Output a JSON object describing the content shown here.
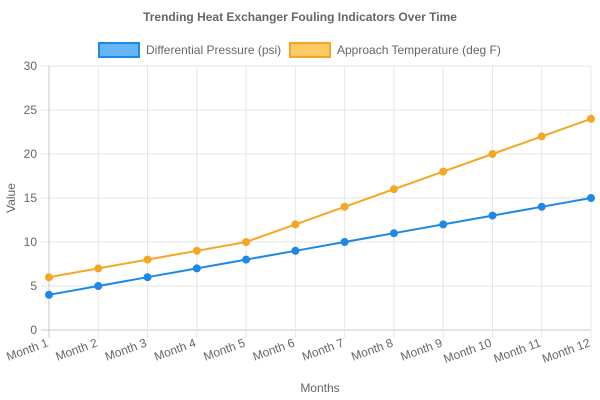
{
  "chart_data": {
    "type": "line",
    "title": "Trending Heat Exchanger Fouling Indicators Over Time",
    "xlabel": "Months",
    "ylabel": "Value",
    "categories": [
      "Month 1",
      "Month 2",
      "Month 3",
      "Month 4",
      "Month 5",
      "Month 6",
      "Month 7",
      "Month 8",
      "Month 9",
      "Month 10",
      "Month 11",
      "Month 12"
    ],
    "ylim": [
      0,
      30
    ],
    "yticks": [
      0,
      5,
      10,
      15,
      20,
      25,
      30
    ],
    "grid": true,
    "legend_position": "top",
    "series": [
      {
        "name": "Differential Pressure (psi)",
        "color": "#1e88e5",
        "fill": "#64b5f6",
        "values": [
          4,
          5,
          6,
          7,
          8,
          9,
          10,
          11,
          12,
          13,
          14,
          15
        ]
      },
      {
        "name": "Approach Temperature (deg F)",
        "color": "#f5a623",
        "fill": "#ffc966",
        "values": [
          6,
          7,
          8,
          9,
          10,
          12,
          14,
          16,
          18,
          20,
          22,
          24
        ]
      }
    ]
  }
}
